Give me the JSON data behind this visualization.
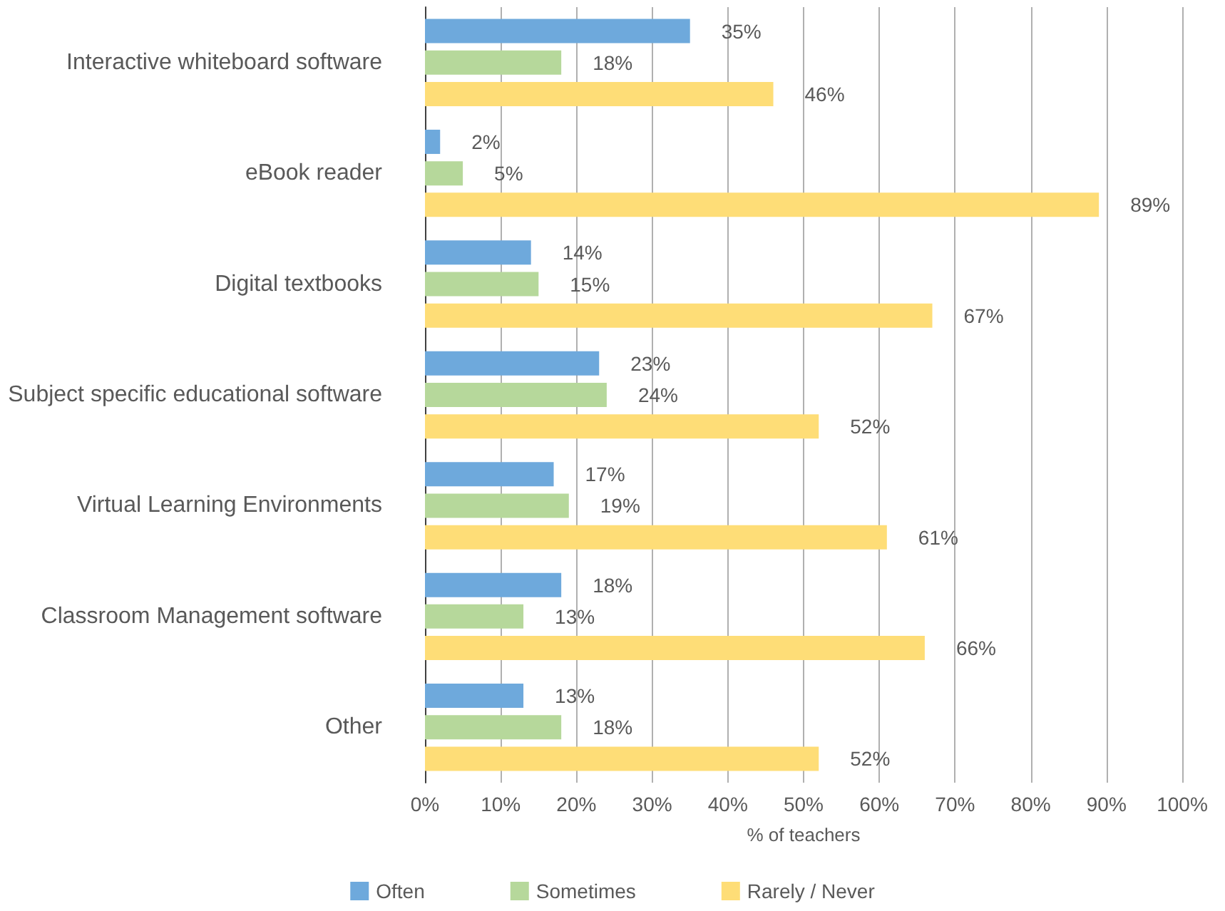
{
  "chart_data": {
    "type": "bar",
    "orientation": "horizontal",
    "xlabel": "% of teachers",
    "categories": [
      "Interactive whiteboard software",
      "eBook reader",
      "Digital textbooks",
      "Subject specific educational software",
      "Virtual Learning Environments",
      "Classroom Management software",
      "Other"
    ],
    "series": [
      {
        "name": "Often",
        "color": "#6ea9dc",
        "values": [
          35,
          2,
          14,
          23,
          17,
          18,
          13
        ],
        "value_labels": [
          "35%",
          "2%",
          "14%",
          "23%",
          "17%",
          "18%",
          "13%"
        ]
      },
      {
        "name": "Sometimes",
        "color": "#b6d89b",
        "values": [
          18,
          5,
          15,
          24,
          19,
          13,
          18
        ],
        "value_labels": [
          "18%",
          "5%",
          "15%",
          "24%",
          "19%",
          "13%",
          "18%"
        ]
      },
      {
        "name": "Rarely / Never",
        "color": "#fedd77",
        "values": [
          46,
          89,
          67,
          52,
          61,
          66,
          52
        ],
        "value_labels": [
          "46%",
          "89%",
          "67%",
          "52%",
          "61%",
          "66%",
          "52%"
        ]
      }
    ],
    "xlim": [
      0,
      100
    ],
    "xticks": [
      {
        "value": 0,
        "label": "0%"
      },
      {
        "value": 10,
        "label": "10%"
      },
      {
        "value": 20,
        "label": "20%"
      },
      {
        "value": 30,
        "label": "30%"
      },
      {
        "value": 40,
        "label": "40%"
      },
      {
        "value": 50,
        "label": "50%"
      },
      {
        "value": 60,
        "label": "60%"
      },
      {
        "value": 70,
        "label": "70%"
      },
      {
        "value": 80,
        "label": "80%"
      },
      {
        "value": 90,
        "label": "90%"
      },
      {
        "value": 100,
        "label": "100%"
      }
    ],
    "grid": "x",
    "legend": "bottom"
  }
}
